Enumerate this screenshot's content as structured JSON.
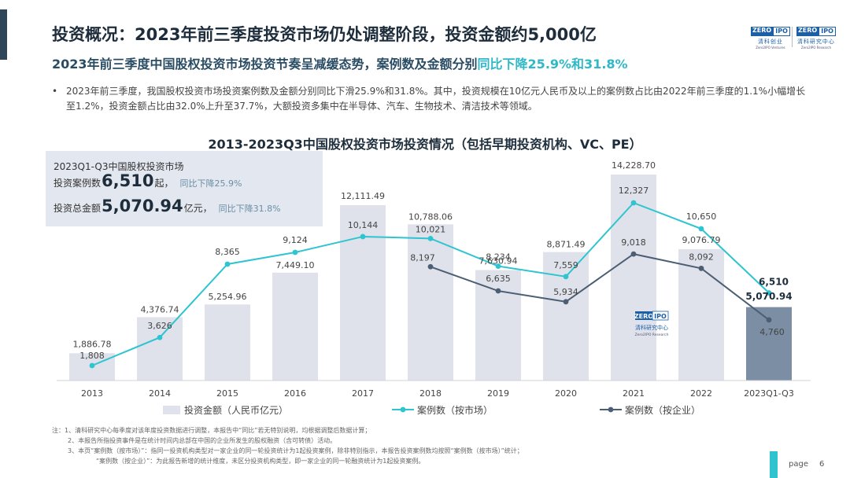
{
  "header": {
    "title": "投资概况：2023年前三季度投资市场仍处调整阶段，投资金额约5,000亿",
    "subtitle_main": "2023年前三季度中国股权投资市场投资节奏呈减缓态势，案例数及金额分别",
    "subtitle_highlight": "同比下降25.9%和31.8%"
  },
  "logo": {
    "left": {
      "zero": "ZERO",
      "ipo": "IPO",
      "cn": "清科创业",
      "en": "Zero2IPO Ventures"
    },
    "right": {
      "zero": "ZERO",
      "ipo": "IPO",
      "cn": "清科研究中心",
      "en": "Zero2IPO Research"
    }
  },
  "bullet": {
    "symbol": "•",
    "text": "2023年前三季度，我国股权投资市场投资案例数及金额分别同比下滑25.9%和31.8%。其中，投资规模在10亿元人民币及以上的案例数占比由2022年前三季度的1.1%小幅增长至1.2%，投资金额占比由32.0%上升至37.7%，大额投资多集中在半导体、汽车、生物技术、清洁技术等领域。"
  },
  "info_box": {
    "header": "2023Q1-Q3中国股权投资市场",
    "cases_label": "投资案例数",
    "cases_value": "6,510",
    "cases_unit": "起，",
    "cases_change": "同比下降25.9%",
    "amount_label": "投资总金额",
    "amount_value": "5,070.94",
    "amount_unit": "亿元，",
    "amount_change": "同比下降31.8%"
  },
  "chart_data": {
    "type": "bar",
    "title": "2013-2023Q3中国股权投资市场投资情况（包括早期投资机构、VC、PE）",
    "categories": [
      "2013",
      "2014",
      "2015",
      "2016",
      "2017",
      "2018",
      "2019",
      "2020",
      "2021",
      "2022",
      "2023Q1-Q3"
    ],
    "bar_series": {
      "name": "投资金额（人民币亿元）",
      "values": [
        1886.78,
        4376.74,
        5254.96,
        7449.1,
        12111.49,
        10788.06,
        7630.94,
        8871.49,
        14228.7,
        9076.79,
        5070.94
      ],
      "labels": [
        "1,886.78",
        "4,376.74",
        "5,254.96",
        "7,449.10",
        "12,111.49",
        "10,788.06",
        "7,630.94",
        "8,871.49",
        "14,228.70",
        "9,076.79",
        "5,070.94"
      ],
      "color": "#dfe2ea",
      "highlight_color": "#7b8ea3"
    },
    "line_series": [
      {
        "name": "案例数（按市场）",
        "color": "#2ec4d0",
        "values": [
          1808,
          3626,
          8365,
          9124,
          10144,
          10021,
          8234,
          7559,
          12327,
          10650,
          6510
        ],
        "labels": [
          "1,808",
          "3,626",
          "8,365",
          "9,124",
          "10,144",
          "10,021",
          "8,234",
          "7,559",
          "12,327",
          "10,650",
          "6,510"
        ]
      },
      {
        "name": "案例数（按企业）",
        "color": "#4c5e73",
        "start_index": 5,
        "values": [
          8197,
          6635,
          5934,
          9018,
          8092,
          4760
        ],
        "labels": [
          "8,197",
          "6,635",
          "5,934",
          "9,018",
          "8,092",
          "4,760"
        ]
      }
    ]
  },
  "watermark": {
    "zero": "ZERO",
    "ipo": "IPO",
    "cn": "清科研究中心",
    "en": "Zero2IPO Research"
  },
  "notes": [
    "注：1、清科研究中心每季度对该年度投资数据进行调整，本报告中“同比”若无特别说明，均根据调整后数据计算；",
    "2、本报告所指投资事件是在统计时间内总部在中国的企业所发生的股权融资（含可转债）活动。",
    "3、本页“案例数（按市场）”：指同一投资机构类型对一家企业的同一轮投资统计为1起投资案例，除非特别指示，本报告投资案例数均按照“案例数（按市场）”统计；",
    "“案例数（按企业）”：为此报告新增的统计维度，未区分投资机构类型，即一家企业的同一轮融资统计为1起投资案例。"
  ],
  "page": {
    "label": "page",
    "number": "6"
  }
}
